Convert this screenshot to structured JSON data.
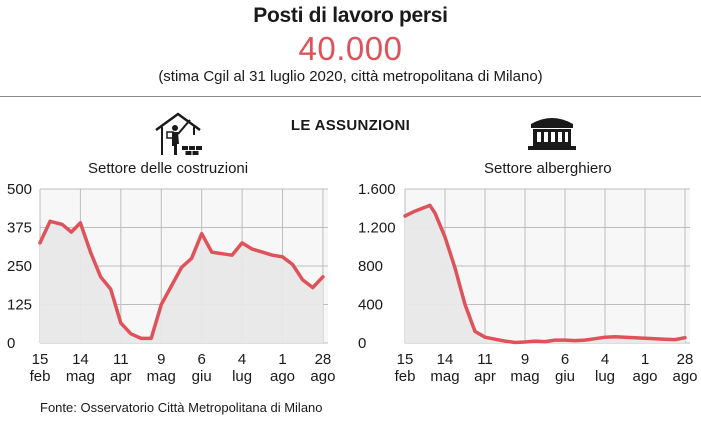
{
  "header": {
    "title": "Posti di lavoro persi",
    "value": "40.000",
    "subtitle": "(stima Cgil al 31 luglio 2020, città metropolitana di Milano)"
  },
  "section_title": "LE ASSUNZIONI",
  "source": "Fonte: Osservatorio Città Metropolitana di Milano",
  "icons": [
    "construction-worker-icon",
    "hotel-building-icon"
  ],
  "colors": {
    "line": "#e0525a",
    "fill": "#e8e8e8",
    "accent": "#e0525a"
  },
  "chart_data": [
    {
      "type": "area",
      "title": "Settore delle costruzioni",
      "ylim": [
        0,
        500
      ],
      "yticks": [
        0,
        125,
        250,
        375,
        500
      ],
      "ytick_labels": [
        "0",
        "125",
        "250",
        "375",
        "500"
      ],
      "grid": true,
      "xticks": [
        {
          "day": "15",
          "month": "feb"
        },
        {
          "day": "14",
          "month": "mag"
        },
        {
          "day": "11",
          "month": "apr"
        },
        {
          "day": "9",
          "month": "mag"
        },
        {
          "day": "6",
          "month": "giu"
        },
        {
          "day": "4",
          "month": "lug"
        },
        {
          "day": "1",
          "month": "ago"
        },
        {
          "day": "28",
          "month": "ago"
        }
      ],
      "x_domain": [
        0,
        28.5
      ],
      "x": [
        0,
        1,
        2.2,
        3.1,
        4,
        5,
        6,
        7,
        8,
        9,
        10,
        11,
        12,
        13,
        14,
        15,
        16,
        17,
        18,
        19,
        20,
        21,
        22,
        23,
        24,
        25,
        26,
        27,
        28
      ],
      "values": [
        325,
        395,
        385,
        360,
        390,
        295,
        215,
        175,
        65,
        30,
        15,
        15,
        125,
        185,
        245,
        275,
        355,
        295,
        290,
        285,
        325,
        305,
        295,
        285,
        280,
        255,
        205,
        180,
        215
      ]
    },
    {
      "type": "area",
      "title": "Settore alberghiero",
      "ylim": [
        0,
        1600
      ],
      "yticks": [
        0,
        400,
        800,
        1200,
        1600
      ],
      "ytick_labels": [
        "0",
        "400",
        "800",
        "1.200",
        "1.600"
      ],
      "grid": true,
      "xticks": [
        {
          "day": "15",
          "month": "feb"
        },
        {
          "day": "14",
          "month": "mag"
        },
        {
          "day": "11",
          "month": "apr"
        },
        {
          "day": "9",
          "month": "mag"
        },
        {
          "day": "6",
          "month": "giu"
        },
        {
          "day": "4",
          "month": "lug"
        },
        {
          "day": "1",
          "month": "ago"
        },
        {
          "day": "28",
          "month": "ago"
        }
      ],
      "x_domain": [
        0,
        28.5
      ],
      "x": [
        0,
        1,
        2,
        2.5,
        3,
        4,
        5,
        6,
        7,
        8,
        9,
        10,
        11,
        12,
        13,
        14,
        15,
        16,
        17,
        18,
        19,
        20,
        21,
        22,
        23,
        24,
        25,
        26,
        27,
        28
      ],
      "values": [
        1320,
        1370,
        1410,
        1430,
        1350,
        1100,
        780,
        400,
        120,
        60,
        40,
        20,
        5,
        10,
        20,
        15,
        30,
        30,
        25,
        30,
        45,
        60,
        65,
        60,
        55,
        50,
        45,
        40,
        35,
        55
      ]
    }
  ]
}
